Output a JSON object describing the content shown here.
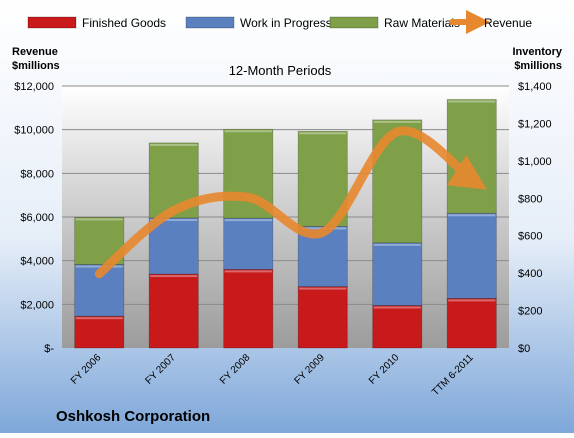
{
  "chart_data": {
    "type": "bar",
    "subtitle": "12-Month Periods",
    "footer_title": "Oshkosh Corporation",
    "y_left_title_lines": [
      "Revenue",
      "$millions"
    ],
    "y_right_title_lines": [
      "Inventory",
      "$millions"
    ],
    "categories": [
      "FY 2006",
      "FY 2007",
      "FY 2008",
      "FY 2009",
      "FY 2010",
      "TTM 6-2011"
    ],
    "left_axis": {
      "min": 0,
      "max": 12000,
      "ticks": [
        "$-",
        "$2,000",
        "$4,000",
        "$6,000",
        "$8,000",
        "$10,000",
        "$12,000"
      ]
    },
    "right_axis": {
      "min": 0,
      "max": 1400,
      "ticks": [
        "$0",
        "$200",
        "$400",
        "$600",
        "$800",
        "$1,000",
        "$1,200",
        "$1,400"
      ]
    },
    "bar_series": [
      {
        "name": "Finished Goods",
        "color": "#c8191b",
        "values": [
          170,
          395,
          420,
          328,
          227,
          265
        ]
      },
      {
        "name": "Work in Progress",
        "color": "#5b80c0",
        "values": [
          276,
          300,
          274,
          322,
          335,
          455
        ]
      },
      {
        "name": "Raw Materials",
        "color": "#7fa048",
        "values": [
          252,
          401,
          475,
          508,
          657,
          608
        ]
      }
    ],
    "line_series": {
      "name": "Revenue",
      "color": "#e8882e",
      "values": [
        3400,
        6300,
        6900,
        5300,
        9900,
        7700
      ]
    },
    "legend_placement": "top",
    "grid": true
  }
}
